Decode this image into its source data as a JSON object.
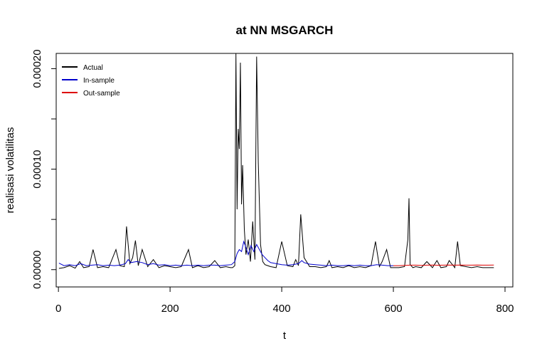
{
  "chart_data": {
    "type": "line",
    "title": "at NN MSGARCH",
    "xlabel": "t",
    "ylabel": "realisasi volatilitas",
    "xlim": [
      -4,
      814
    ],
    "ylim": [
      -1.72e-05,
      0.0002152
    ],
    "x_ticks": [
      0,
      200,
      400,
      600,
      800
    ],
    "x_tick_labels": [
      "0",
      "200",
      "400",
      "600",
      "800"
    ],
    "y_ticks": [
      0,
      5e-05,
      0.0001,
      0.00015,
      0.0002
    ],
    "y_tick_labels": [
      "0.00000",
      "",
      "0.00010",
      "",
      "0.00020"
    ],
    "grid": false,
    "legend_position": "top-left",
    "series": [
      {
        "name": "Actual",
        "color": "#000000",
        "x": [
          1,
          10,
          20,
          30,
          38,
          45,
          55,
          62,
          70,
          80,
          90,
          103,
          110,
          118,
          122,
          128,
          133,
          138,
          143,
          150,
          160,
          170,
          180,
          190,
          200,
          210,
          220,
          233,
          240,
          250,
          260,
          270,
          280,
          290,
          300,
          308,
          312,
          316,
          318,
          320,
          322,
          324,
          326,
          328,
          330,
          333,
          336,
          340,
          344,
          348,
          352,
          355,
          358,
          362,
          366,
          370,
          375,
          380,
          390,
          400,
          410,
          420,
          425,
          430,
          434,
          440,
          450,
          460,
          470,
          480,
          485,
          490,
          500,
          510,
          520,
          530,
          540,
          550,
          560,
          568,
          575,
          580,
          588,
          595,
          600,
          610,
          620,
          626,
          628,
          630,
          635,
          640,
          650,
          660,
          670,
          678,
          685,
          695,
          700,
          710,
          715,
          720,
          730,
          740,
          750,
          760,
          770,
          780
        ],
        "y": [
          1.2e-06,
          2e-06,
          4e-06,
          1.5e-06,
          8e-06,
          2e-06,
          3e-06,
          2e-05,
          2e-06,
          3e-06,
          2e-06,
          2e-05,
          4e-06,
          3e-06,
          4.3e-05,
          6e-06,
          1.2e-05,
          2.9e-05,
          4e-06,
          2e-05,
          3e-06,
          1e-05,
          2e-06,
          4e-06,
          3e-06,
          2e-06,
          3e-06,
          2e-05,
          2e-06,
          4e-06,
          2e-06,
          3e-06,
          9e-06,
          2e-06,
          3e-06,
          2e-06,
          2e-06,
          4e-06,
          0.000215,
          6e-05,
          0.00014,
          0.00012,
          0.000206,
          6.5e-05,
          0.000104,
          4e-05,
          1.5e-05,
          3e-05,
          8e-06,
          4.8e-05,
          1e-05,
          0.000212,
          0.000107,
          2.5e-05,
          8e-06,
          5e-06,
          4e-06,
          3e-06,
          2e-06,
          2.8e-05,
          4e-06,
          3e-06,
          1e-05,
          4e-06,
          5.5e-05,
          1.2e-05,
          3e-06,
          3e-06,
          2e-06,
          3e-06,
          9e-06,
          2e-06,
          3e-06,
          2e-06,
          4e-06,
          2e-06,
          3e-06,
          2e-06,
          4e-06,
          2.8e-05,
          3e-06,
          8e-06,
          2e-05,
          2e-06,
          2e-06,
          2e-06,
          3e-06,
          3e-05,
          7.1e-05,
          5e-06,
          2e-06,
          3e-06,
          2e-06,
          8e-06,
          2e-06,
          9e-06,
          2e-06,
          3e-06,
          9e-06,
          2e-06,
          2.8e-05,
          4e-06,
          3e-06,
          2e-06,
          3e-06,
          2e-06,
          2e-06,
          2e-06
        ]
      },
      {
        "name": "In-sample",
        "color": "#0000cc",
        "x": [
          1,
          10,
          20,
          30,
          40,
          50,
          60,
          70,
          80,
          90,
          100,
          110,
          120,
          125,
          130,
          140,
          150,
          160,
          170,
          180,
          190,
          200,
          210,
          220,
          230,
          240,
          250,
          260,
          270,
          280,
          290,
          300,
          310,
          316,
          320,
          324,
          328,
          332,
          336,
          340,
          345,
          350,
          355,
          360,
          365,
          370,
          375,
          380,
          390,
          400,
          410,
          420,
          430,
          436,
          440,
          450,
          460,
          470,
          480,
          490,
          500,
          510,
          520,
          530,
          540,
          550,
          560,
          570,
          580,
          590,
          600
        ],
        "y": [
          6.5e-06,
          4e-06,
          5e-06,
          4e-06,
          6e-06,
          4e-06,
          4.5e-06,
          5e-06,
          4e-06,
          4.5e-06,
          4e-06,
          4.5e-06,
          6e-06,
          1e-05,
          7e-06,
          8e-06,
          7e-06,
          5e-06,
          6e-06,
          4.5e-06,
          5e-06,
          4e-06,
          4.5e-06,
          4e-06,
          4.5e-06,
          4e-06,
          4.5e-06,
          4e-06,
          4.5e-06,
          4.5e-06,
          4e-06,
          4.5e-06,
          5e-06,
          8e-06,
          1.6e-05,
          2e-05,
          1.8e-05,
          2.8e-05,
          2.2e-05,
          1.5e-05,
          2.4e-05,
          1.8e-05,
          2.5e-05,
          2e-05,
          1.5e-05,
          1.2e-05,
          9e-06,
          7e-06,
          6e-06,
          5e-06,
          4.5e-06,
          5e-06,
          6e-06,
          9e-06,
          7e-06,
          5.5e-06,
          5e-06,
          4.5e-06,
          4e-06,
          4.5e-06,
          4e-06,
          4e-06,
          4.5e-06,
          4e-06,
          4.5e-06,
          4e-06,
          4e-06,
          5e-06,
          4.5e-06,
          4e-06,
          4e-06
        ]
      },
      {
        "name": "Out-sample",
        "color": "#dd0000",
        "x": [
          600,
          610,
          620,
          630,
          640,
          650,
          660,
          670,
          680,
          690,
          700,
          710,
          720,
          730,
          740,
          750,
          760,
          770,
          780
        ],
        "y": [
          4e-06,
          4e-06,
          4.3e-06,
          4.5e-06,
          4.5e-06,
          4.3e-06,
          4.5e-06,
          4.6e-06,
          4.4e-06,
          4.5e-06,
          4.6e-06,
          4.5e-06,
          4.6e-06,
          4.5e-06,
          4.5e-06,
          4.6e-06,
          4.5e-06,
          4.5e-06,
          4.6e-06
        ]
      }
    ]
  }
}
